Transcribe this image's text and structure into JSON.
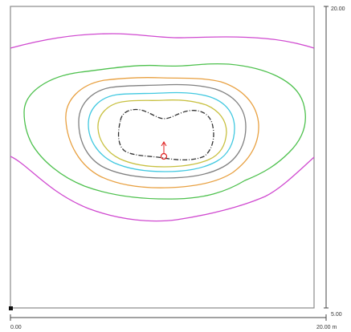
{
  "axes": {
    "x_start_label": "0.00",
    "x_end_label": "20.00 m",
    "y_top_label": "20.00",
    "y_bottom_label": "5.00"
  },
  "colors": {
    "frame": "#8a8a8a",
    "axis": "#444444",
    "contour_magenta": "#d04ad0",
    "contour_green": "#4cc04c",
    "contour_orange": "#e8a040",
    "contour_gray": "#808080",
    "contour_cyan": "#40c8e0",
    "contour_yellow": "#c8c040",
    "contour_black": "#333333",
    "marker": "#e02020"
  },
  "contours": [
    {
      "name": "magenta-top",
      "color": "contour_magenta"
    },
    {
      "name": "magenta-bottom",
      "color": "contour_magenta"
    },
    {
      "name": "green",
      "color": "contour_green"
    },
    {
      "name": "orange",
      "color": "contour_orange"
    },
    {
      "name": "gray",
      "color": "contour_gray"
    },
    {
      "name": "cyan",
      "color": "contour_cyan"
    },
    {
      "name": "yellow",
      "color": "contour_yellow"
    },
    {
      "name": "black-dashed",
      "color": "contour_black"
    }
  ]
}
